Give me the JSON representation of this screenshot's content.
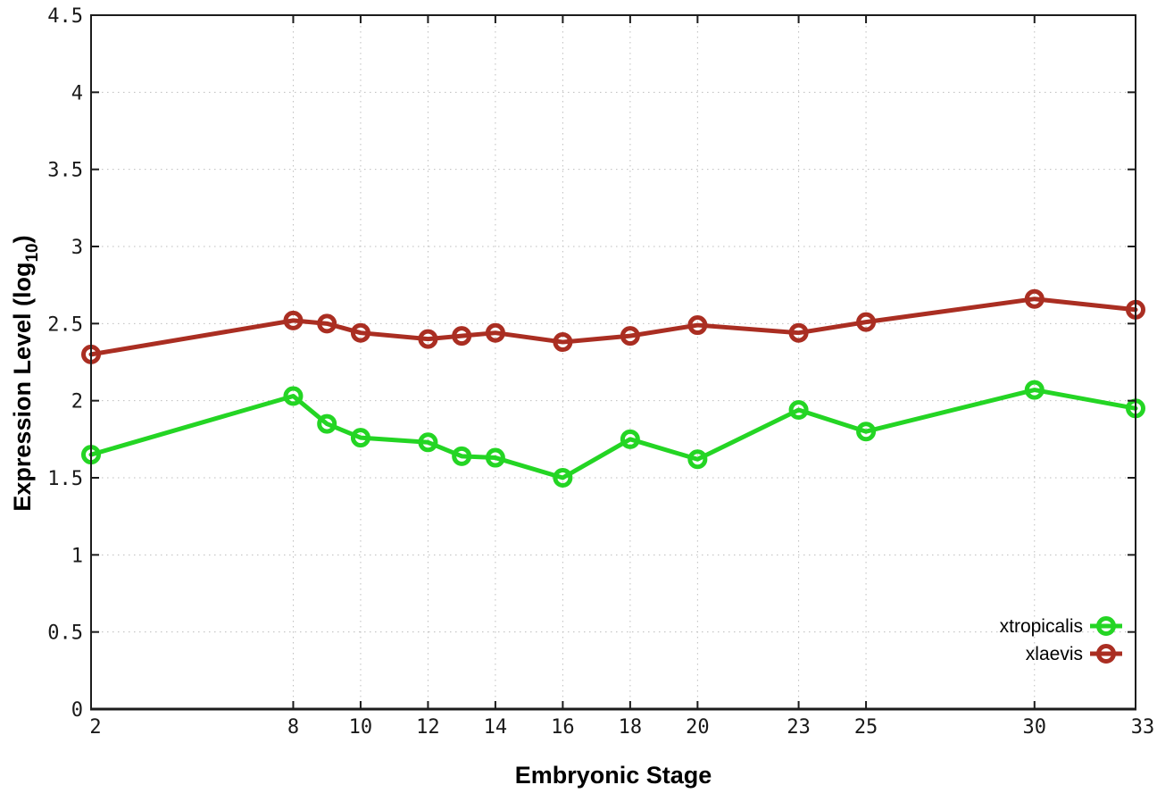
{
  "chart_data": {
    "type": "line",
    "title": "",
    "xlabel": "Embryonic Stage",
    "ylabel_plain": "Expression Level (log10)",
    "ylabel_parts": [
      "Expression Level (log",
      "10",
      ")"
    ],
    "x": [
      2,
      8,
      9,
      10,
      12,
      13,
      14,
      16,
      18,
      20,
      23,
      25,
      30,
      33
    ],
    "series": [
      {
        "name": "xtropicalis",
        "color": "#24d524",
        "values": [
          1.65,
          2.03,
          1.85,
          1.76,
          1.73,
          1.64,
          1.63,
          1.5,
          1.75,
          1.62,
          1.94,
          1.8,
          2.07,
          1.95
        ]
      },
      {
        "name": "xlaevis",
        "color": "#aa2e22",
        "values": [
          2.3,
          2.52,
          2.5,
          2.44,
          2.4,
          2.42,
          2.44,
          2.38,
          2.42,
          2.49,
          2.44,
          2.51,
          2.66,
          2.59
        ]
      }
    ],
    "xticks": [
      2,
      8,
      10,
      12,
      14,
      16,
      18,
      20,
      23,
      25,
      30,
      33
    ],
    "xtick_labels": [
      "2",
      "8",
      "10",
      "12",
      "14",
      "16",
      "18",
      "20",
      "23",
      "25",
      "30",
      "33"
    ],
    "yticks": [
      0,
      0.5,
      1,
      1.5,
      2,
      2.5,
      3,
      3.5,
      4,
      4.5
    ],
    "ytick_labels": [
      "0",
      "0.5",
      "1",
      "1.5",
      "2",
      "2.5",
      "3",
      "3.5",
      "4",
      "4.5"
    ],
    "xlim": [
      2,
      33
    ],
    "ylim": [
      0,
      4.5
    ],
    "grid": true,
    "grid_style": "dotted",
    "legend_position": "inside-bottom-right",
    "legend_entries": [
      "xtropicalis",
      "xlaevis"
    ]
  },
  "colors": {
    "background": "#ffffff",
    "border": "#1c1c1c",
    "grid": "#bdbdbd",
    "tick_text": "#1a1a1a",
    "green_series": "#24d524",
    "red_series": "#aa2e22"
  }
}
